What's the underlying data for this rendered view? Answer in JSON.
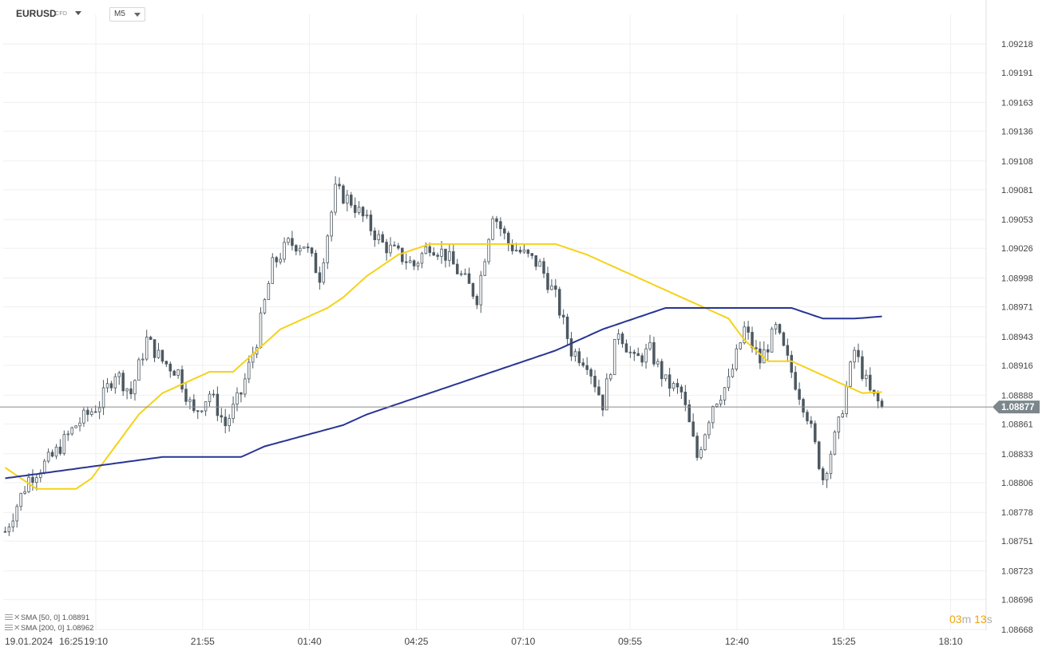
{
  "header": {
    "symbol": "EURUSD",
    "symbol_type": "CFD",
    "timeframe": "M5"
  },
  "indicators": [
    {
      "label": "SMA",
      "params": "[50,  0]",
      "value": "1.08891",
      "color": "#f5d218"
    },
    {
      "label": "SMA",
      "params": "[200,  0]",
      "value": "1.08962",
      "color": "#283593"
    }
  ],
  "timer": {
    "minutes": "03",
    "minutes_unit": "m",
    "seconds": "13",
    "seconds_unit": "s"
  },
  "colors": {
    "bull": "#9aa1a6",
    "bear": "#4d5961",
    "grid": "#efefef",
    "price_line": "#8a8a8a",
    "price_tag": "#7b868d"
  },
  "chart_data": {
    "type": "candlestick",
    "instrument": "EURUSD",
    "timeframe": "M5",
    "x_ticks": [
      "19.01.2024",
      "16:25",
      "19:10",
      "21:55",
      "01:40",
      "04:25",
      "07:10",
      "09:55",
      "12:40",
      "15:25",
      "18:10"
    ],
    "y_ticks": [
      "1.09218",
      "1.09191",
      "1.09163",
      "1.09136",
      "1.09108",
      "1.09081",
      "1.09053",
      "1.09026",
      "1.08998",
      "1.08971",
      "1.08943",
      "1.08916",
      "1.08888",
      "1.08861",
      "1.08833",
      "1.08806",
      "1.08778",
      "1.08751",
      "1.08723",
      "1.08696",
      "1.08668"
    ],
    "ylim": [
      1.08668,
      1.09245
    ],
    "current_price": "1.08877",
    "close_path": [
      [
        0,
        1.0876
      ],
      [
        6,
        1.0881
      ],
      [
        12,
        1.0883
      ],
      [
        18,
        1.0886
      ],
      [
        24,
        1.0888
      ],
      [
        28,
        1.0891
      ],
      [
        32,
        1.0889
      ],
      [
        36,
        1.0894
      ],
      [
        40,
        1.0892
      ],
      [
        44,
        1.0891
      ],
      [
        48,
        1.0887
      ],
      [
        52,
        1.0889
      ],
      [
        56,
        1.0886
      ],
      [
        60,
        1.0889
      ],
      [
        64,
        1.0894
      ],
      [
        68,
        1.0901
      ],
      [
        72,
        1.0903
      ],
      [
        76,
        1.0903
      ],
      [
        80,
        1.09
      ],
      [
        84,
        1.0908
      ],
      [
        88,
        1.0907
      ],
      [
        92,
        1.0905
      ],
      [
        96,
        1.0903
      ],
      [
        100,
        1.0902
      ],
      [
        104,
        1.0901
      ],
      [
        108,
        1.0903
      ],
      [
        112,
        1.0902
      ],
      [
        116,
        1.09
      ],
      [
        120,
        1.0898
      ],
      [
        124,
        1.0906
      ],
      [
        128,
        1.0903
      ],
      [
        132,
        1.0902
      ],
      [
        136,
        1.0901
      ],
      [
        140,
        1.0898
      ],
      [
        144,
        1.0893
      ],
      [
        148,
        1.0892
      ],
      [
        152,
        1.0888
      ],
      [
        156,
        1.0895
      ],
      [
        160,
        1.0892
      ],
      [
        164,
        1.0893
      ],
      [
        168,
        1.089
      ],
      [
        172,
        1.0889
      ],
      [
        176,
        1.0883
      ],
      [
        180,
        1.0888
      ],
      [
        184,
        1.089
      ],
      [
        188,
        1.0895
      ],
      [
        192,
        1.0892
      ],
      [
        196,
        1.0895
      ],
      [
        200,
        1.0891
      ],
      [
        204,
        1.0887
      ],
      [
        208,
        1.0881
      ],
      [
        212,
        1.0886
      ],
      [
        216,
        1.0893
      ],
      [
        220,
        1.0889
      ],
      [
        223,
        1.08877
      ]
    ],
    "sma50_path": [
      [
        0,
        1.0882
      ],
      [
        8,
        1.088
      ],
      [
        14,
        1.088
      ],
      [
        18,
        1.088
      ],
      [
        22,
        1.0881
      ],
      [
        28,
        1.0884
      ],
      [
        34,
        1.0887
      ],
      [
        40,
        1.0889
      ],
      [
        46,
        1.089
      ],
      [
        52,
        1.0891
      ],
      [
        58,
        1.0891
      ],
      [
        64,
        1.0893
      ],
      [
        70,
        1.0895
      ],
      [
        76,
        1.0896
      ],
      [
        82,
        1.0897
      ],
      [
        86,
        1.0898
      ],
      [
        92,
        1.09
      ],
      [
        100,
        1.0902
      ],
      [
        108,
        1.0903
      ],
      [
        116,
        1.0903
      ],
      [
        124,
        1.0903
      ],
      [
        132,
        1.0903
      ],
      [
        140,
        1.0903
      ],
      [
        148,
        1.0902
      ],
      [
        154,
        1.0901
      ],
      [
        160,
        1.09
      ],
      [
        166,
        1.0899
      ],
      [
        172,
        1.0898
      ],
      [
        178,
        1.0897
      ],
      [
        184,
        1.0896
      ],
      [
        188,
        1.0894
      ],
      [
        194,
        1.0892
      ],
      [
        200,
        1.0892
      ],
      [
        206,
        1.0891
      ],
      [
        212,
        1.089
      ],
      [
        218,
        1.0889
      ],
      [
        223,
        1.08891
      ]
    ],
    "sma200_path": [
      [
        0,
        1.0881
      ],
      [
        20,
        1.0882
      ],
      [
        40,
        1.0883
      ],
      [
        60,
        1.0883
      ],
      [
        66,
        1.0884
      ],
      [
        76,
        1.0885
      ],
      [
        86,
        1.0886
      ],
      [
        92,
        1.0887
      ],
      [
        100,
        1.0888
      ],
      [
        108,
        1.0889
      ],
      [
        116,
        1.089
      ],
      [
        124,
        1.0891
      ],
      [
        132,
        1.0892
      ],
      [
        140,
        1.0893
      ],
      [
        146,
        1.0894
      ],
      [
        152,
        1.0895
      ],
      [
        160,
        1.0896
      ],
      [
        168,
        1.0897
      ],
      [
        176,
        1.0897
      ],
      [
        184,
        1.0897
      ],
      [
        192,
        1.0897
      ],
      [
        200,
        1.0897
      ],
      [
        208,
        1.0896
      ],
      [
        216,
        1.0896
      ],
      [
        223,
        1.08962
      ]
    ],
    "total_bars": 224,
    "future_bars": 26,
    "seed": 7
  }
}
